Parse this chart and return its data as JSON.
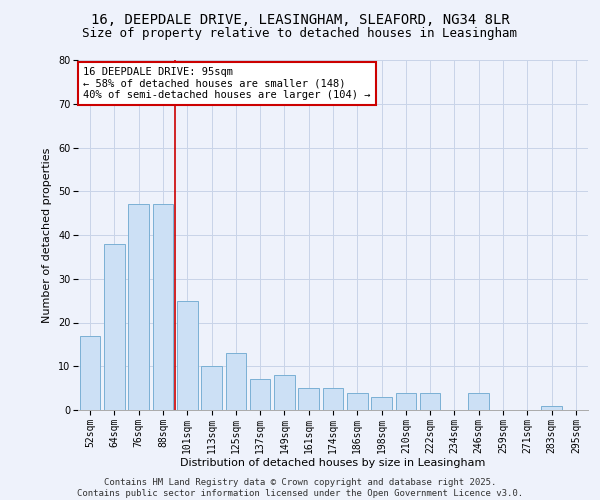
{
  "title_line1": "16, DEEPDALE DRIVE, LEASINGHAM, SLEAFORD, NG34 8LR",
  "title_line2": "Size of property relative to detached houses in Leasingham",
  "xlabel": "Distribution of detached houses by size in Leasingham",
  "ylabel": "Number of detached properties",
  "categories": [
    "52sqm",
    "64sqm",
    "76sqm",
    "88sqm",
    "101sqm",
    "113sqm",
    "125sqm",
    "137sqm",
    "149sqm",
    "161sqm",
    "174sqm",
    "186sqm",
    "198sqm",
    "210sqm",
    "222sqm",
    "234sqm",
    "246sqm",
    "259sqm",
    "271sqm",
    "283sqm",
    "295sqm"
  ],
  "values": [
    17,
    38,
    47,
    47,
    25,
    10,
    13,
    7,
    8,
    5,
    5,
    4,
    3,
    4,
    4,
    0,
    4,
    0,
    0,
    1,
    0
  ],
  "bar_color": "#cce0f5",
  "bar_edge_color": "#7ab0d4",
  "vline_x_idx": 3.5,
  "vline_color": "#cc0000",
  "annotation_text": "16 DEEPDALE DRIVE: 95sqm\n← 58% of detached houses are smaller (148)\n40% of semi-detached houses are larger (104) →",
  "annotation_box_color": "#ffffff",
  "annotation_box_edge": "#cc0000",
  "ylim": [
    0,
    80
  ],
  "yticks": [
    0,
    10,
    20,
    30,
    40,
    50,
    60,
    70,
    80
  ],
  "grid_color": "#c8d4e8",
  "background_color": "#eef2fb",
  "footer_line1": "Contains HM Land Registry data © Crown copyright and database right 2025.",
  "footer_line2": "Contains public sector information licensed under the Open Government Licence v3.0.",
  "title_fontsize": 10,
  "subtitle_fontsize": 9,
  "axis_label_fontsize": 8,
  "tick_fontsize": 7,
  "annotation_fontsize": 7.5,
  "footer_fontsize": 6.5
}
